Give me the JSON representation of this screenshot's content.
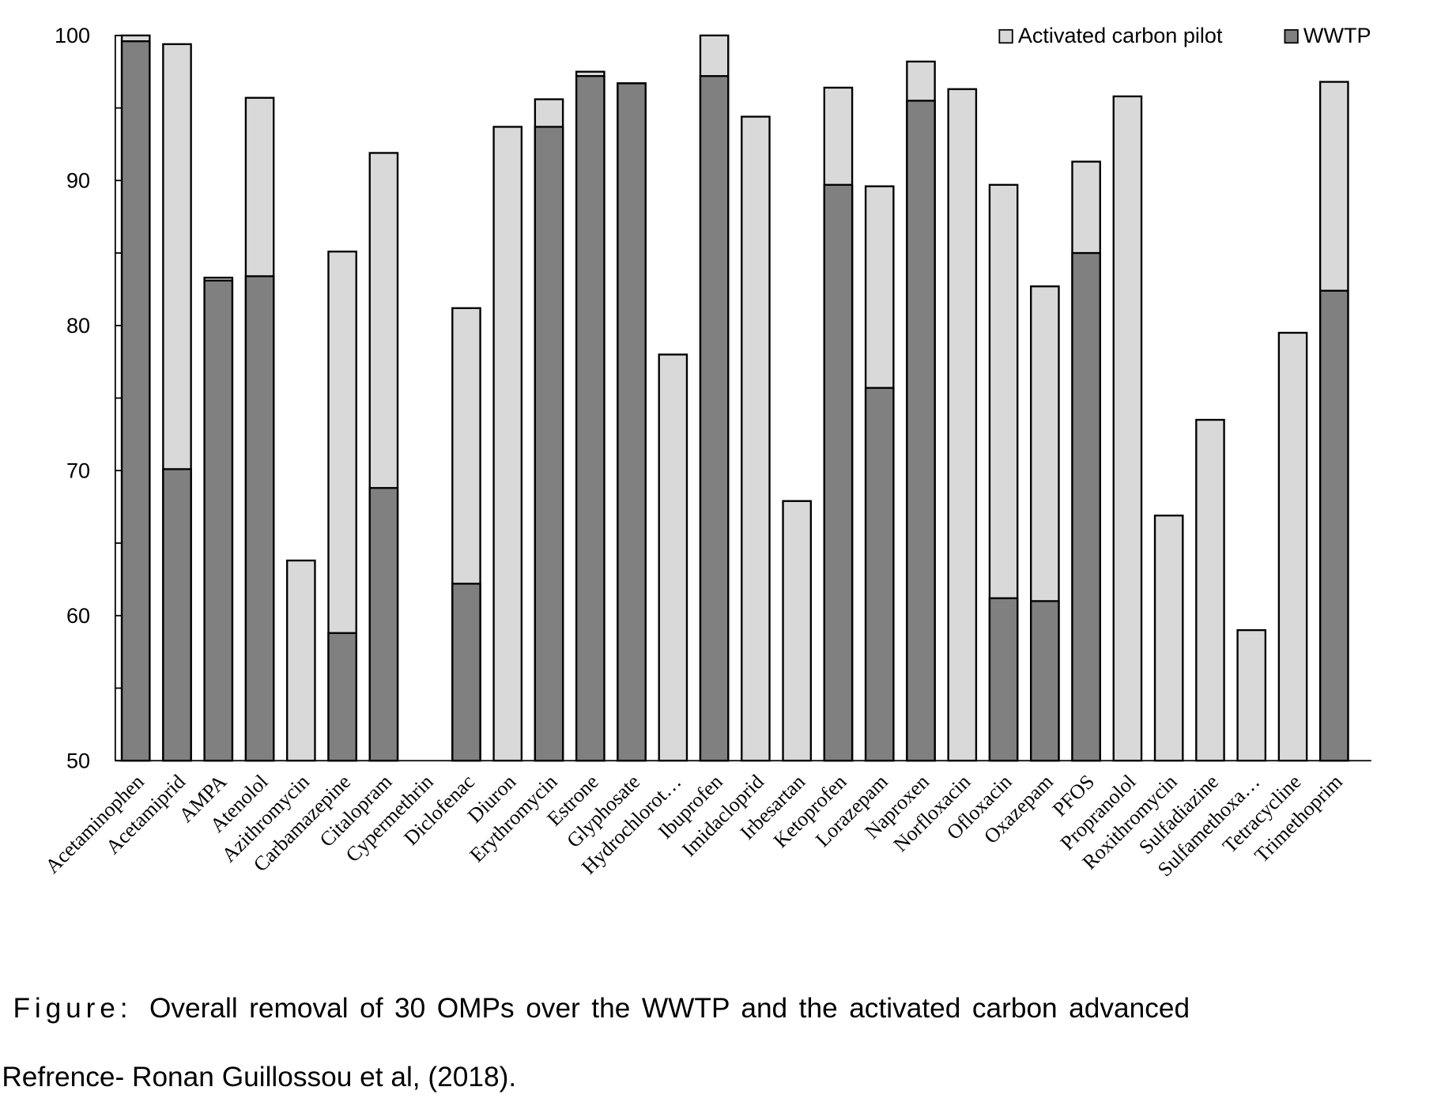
{
  "chart_data": {
    "type": "bar",
    "title": "",
    "xlabel": "",
    "ylabel": "",
    "ylim": [
      50,
      100
    ],
    "y_ticks": [
      100,
      95,
      90,
      85,
      80,
      75,
      70,
      65,
      60,
      55,
      50
    ],
    "y_tick_labels": [
      "100",
      "90",
      "80",
      "70",
      "60",
      "50"
    ],
    "grid": false,
    "legend_position": "top-right",
    "categories": [
      "Acetaminophen",
      "Acetamiprid",
      "AMPA",
      "Atenolol",
      "Azithromycin",
      "Carbamazepine",
      "Citalopram",
      "Cypermethrin",
      "Diclofenac",
      "Diuron",
      "Erythromycin",
      "Estrone",
      "Glyphosate",
      "Hydrochlorot…",
      "Ibuprofen",
      "Imidacloprid",
      "Irbesartan",
      "Ketoprofen",
      "Lorazepam",
      "Naproxen",
      "Norfloxacin",
      "Ofloxacin",
      "Oxazepam",
      "PFOS",
      "Propranolol",
      "Roxithromycin",
      "Sulfadiazine",
      "Sulfamethoxa…",
      "Tetracycline",
      "Trimethoprim"
    ],
    "series": [
      {
        "name": "Activated carbon pilot",
        "color": "#d9d9d9",
        "values": [
          100,
          99.4,
          83.3,
          95.7,
          63.8,
          85.1,
          91.9,
          null,
          81.2,
          93.7,
          95.6,
          97.5,
          96.7,
          78.0,
          100,
          94.4,
          67.9,
          96.4,
          89.6,
          98.2,
          96.3,
          89.7,
          82.7,
          91.3,
          95.8,
          66.9,
          73.5,
          59.0,
          79.5,
          96.8
        ]
      },
      {
        "name": "WWTP",
        "color": "#808080",
        "values": [
          99.6,
          70.1,
          83.1,
          83.4,
          null,
          58.8,
          68.8,
          null,
          62.2,
          null,
          93.7,
          97.2,
          96.7,
          null,
          97.2,
          null,
          null,
          89.7,
          75.7,
          95.5,
          null,
          61.2,
          61.0,
          85.0,
          null,
          null,
          null,
          null,
          null,
          82.4
        ]
      }
    ]
  },
  "caption": {
    "figure_prefix": "Figure:",
    "line1": "Overall removal of 30 OMPs over the WWTP and the activated carbon advanced",
    "line2": "Refrence- Ronan Guillossou et al, (2018)."
  }
}
